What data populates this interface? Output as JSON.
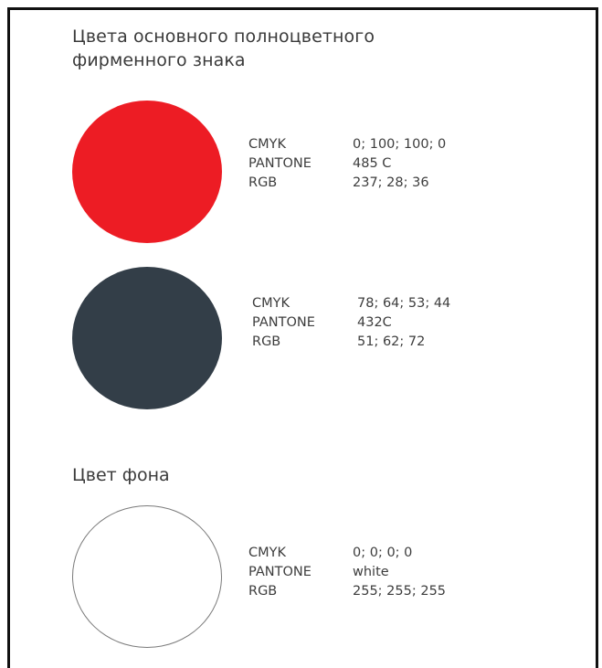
{
  "heading": "Цвета основного полноцветного фирменного знака",
  "background_heading": "Цвет фона",
  "colors": [
    {
      "swatch_color": "#ED1C24",
      "cmyk_label": "CMYK",
      "cmyk": "0; 100; 100; 0",
      "pantone_label": "PANTONE",
      "pantone": "485 C",
      "rgb_label": "RGB",
      "rgb": "237; 28; 36"
    },
    {
      "swatch_color": "#333E48",
      "cmyk_label": "CMYK",
      "cmyk": "78; 64; 53; 44",
      "pantone_label": "PANTONE",
      "pantone": "432C",
      "rgb_label": "RGB",
      "rgb": "51; 62; 72"
    },
    {
      "swatch_color": "#FFFFFF",
      "cmyk_label": "CMYK",
      "cmyk": "0; 0; 0; 0",
      "pantone_label": "PANTONE",
      "pantone": "white",
      "rgb_label": "RGB",
      "rgb": "255; 255; 255"
    }
  ]
}
